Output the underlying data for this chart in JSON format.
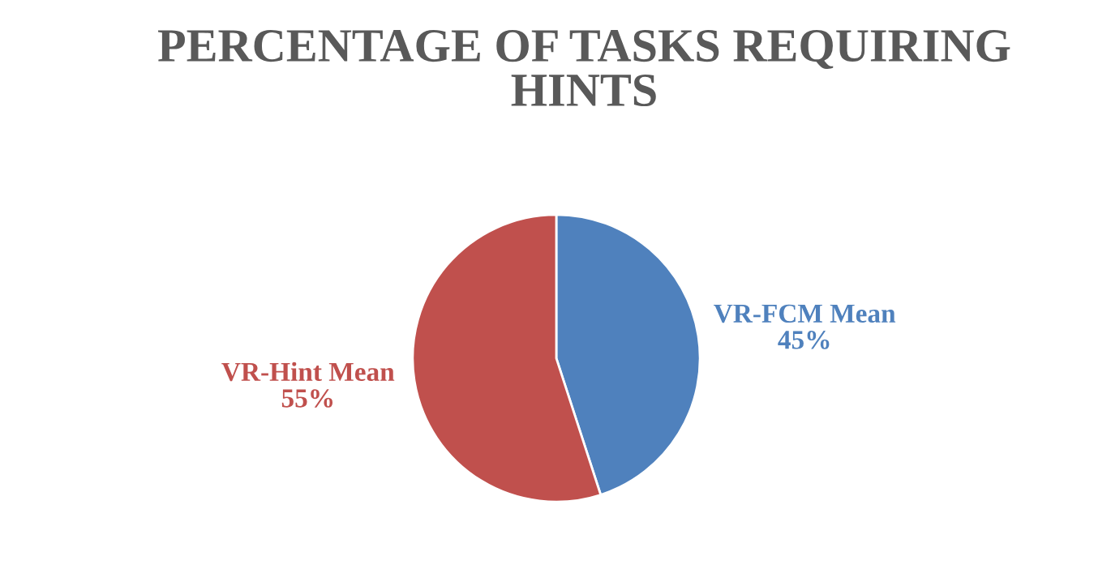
{
  "chart_data": {
    "type": "pie",
    "title": "PERCENTAGE OF TASKS REQUIRING HINTS",
    "categories": [
      "VR-FCM Mean",
      "VR-Hint Mean"
    ],
    "values": [
      45,
      55
    ],
    "colors": [
      "#4f81bd",
      "#c0504d"
    ],
    "value_labels": [
      "45%",
      "55%"
    ],
    "legend": false
  }
}
